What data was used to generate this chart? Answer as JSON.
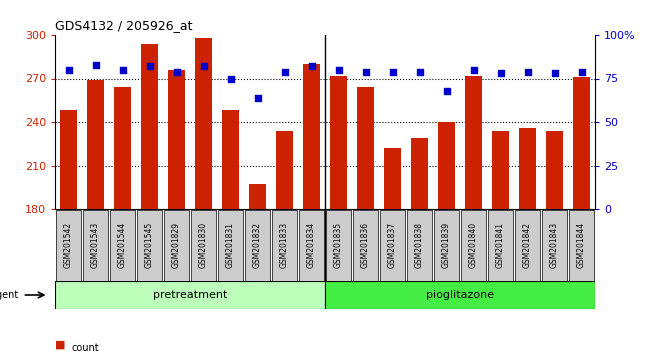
{
  "title": "GDS4132 / 205926_at",
  "samples": [
    "GSM201542",
    "GSM201543",
    "GSM201544",
    "GSM201545",
    "GSM201829",
    "GSM201830",
    "GSM201831",
    "GSM201832",
    "GSM201833",
    "GSM201834",
    "GSM201835",
    "GSM201836",
    "GSM201837",
    "GSM201838",
    "GSM201839",
    "GSM201840",
    "GSM201841",
    "GSM201842",
    "GSM201843",
    "GSM201844"
  ],
  "counts": [
    248,
    269,
    264,
    294,
    276,
    298,
    248,
    197,
    234,
    280,
    272,
    264,
    222,
    229,
    240,
    272,
    234,
    236,
    234,
    271
  ],
  "percentiles": [
    80,
    83,
    80,
    82,
    79,
    82,
    75,
    64,
    79,
    82,
    80,
    79,
    79,
    79,
    68,
    80,
    78,
    79,
    78,
    79
  ],
  "pretreatment_count": 10,
  "pioglitazone_count": 10,
  "ylim_left": [
    180,
    300
  ],
  "ylim_right": [
    0,
    100
  ],
  "yticks_left": [
    180,
    210,
    240,
    270,
    300
  ],
  "yticks_right": [
    0,
    25,
    50,
    75,
    100
  ],
  "bar_color": "#cc2200",
  "dot_color": "#0000cc",
  "pretreatment_color": "#bbffbb",
  "pioglitazone_color": "#44ee44",
  "xtick_bg": "#cccccc",
  "legend_count_color": "#cc2200",
  "legend_pct_color": "#0000cc",
  "grid_yticks": [
    210,
    240,
    270
  ]
}
